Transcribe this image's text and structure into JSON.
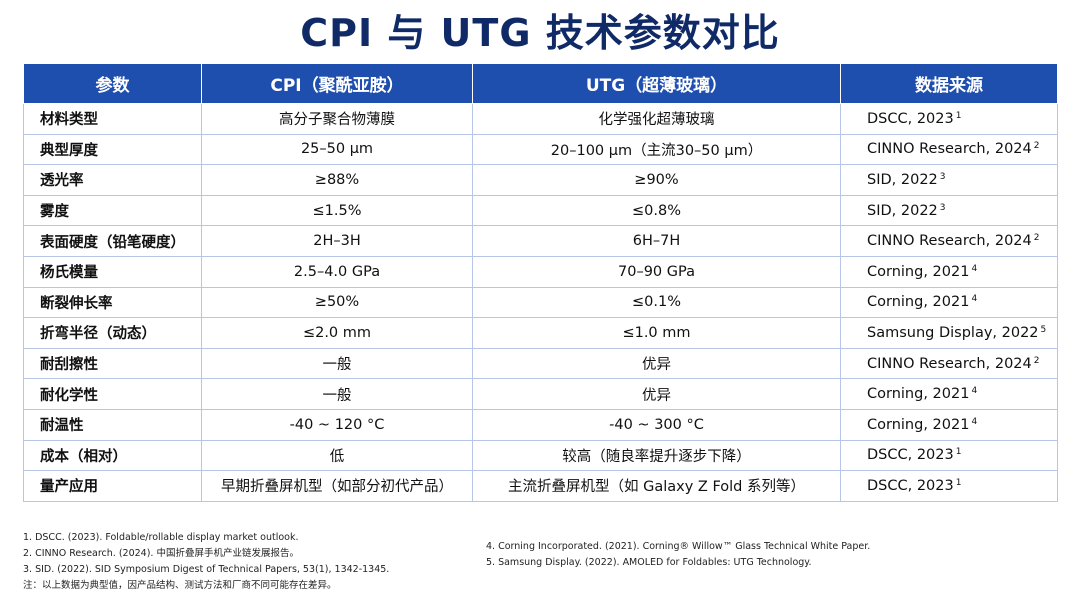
{
  "title": "CPI 与 UTG 技术参数对比",
  "table": {
    "headers": [
      "参数",
      "CPI（聚酰亚胺）",
      "UTG（超薄玻璃）",
      "数据来源"
    ],
    "rows": [
      {
        "param": "材料类型",
        "cpi": "高分子聚合物薄膜",
        "utg": "化学强化超薄玻璃",
        "source": "DSCC, 2023",
        "ref": "1"
      },
      {
        "param": "典型厚度",
        "cpi": "25–50 µm",
        "utg": "20–100 µm（主流30–50 µm）",
        "source": "CINNO Research, 2024",
        "ref": "2"
      },
      {
        "param": "透光率",
        "cpi": "≥88%",
        "utg": "≥90%",
        "source": "SID, 2022",
        "ref": "3"
      },
      {
        "param": "雾度",
        "cpi": "≤1.5%",
        "utg": "≤0.8%",
        "source": "SID, 2022",
        "ref": "3"
      },
      {
        "param": "表面硬度（铅笔硬度）",
        "cpi": "2H–3H",
        "utg": "6H–7H",
        "source": "CINNO Research, 2024",
        "ref": "2"
      },
      {
        "param": "杨氏模量",
        "cpi": "2.5–4.0 GPa",
        "utg": "70–90 GPa",
        "source": "Corning, 2021",
        "ref": "4"
      },
      {
        "param": "断裂伸长率",
        "cpi": "≥50%",
        "utg": "≤0.1%",
        "source": "Corning, 2021",
        "ref": "4"
      },
      {
        "param": "折弯半径（动态）",
        "cpi": "≤2.0 mm",
        "utg": "≤1.0 mm",
        "source": "Samsung Display, 2022",
        "ref": "5"
      },
      {
        "param": "耐刮擦性",
        "cpi": "一般",
        "utg": "优异",
        "source": "CINNO Research, 2024",
        "ref": "2"
      },
      {
        "param": "耐化学性",
        "cpi": "一般",
        "utg": "优异",
        "source": "Corning, 2021",
        "ref": "4"
      },
      {
        "param": "耐温性",
        "cpi": "-40 ~ 120 °C",
        "utg": "-40 ~ 300 °C",
        "source": "Corning, 2021",
        "ref": "4"
      },
      {
        "param": "成本（相对）",
        "cpi": "低",
        "utg": "较高（随良率提升逐步下降）",
        "source": "DSCC, 2023",
        "ref": "1"
      },
      {
        "param": "量产应用",
        "cpi": "早期折叠屏机型（如部分初代产品）",
        "utg": "主流折叠屏机型（如 Galaxy Z Fold 系列等）",
        "source": "DSCC, 2023",
        "ref": "1"
      }
    ]
  },
  "references": {
    "left": [
      "1. DSCC. (2023). Foldable/rollable display market outlook.",
      "2. CINNO Research. (2024). 中国折叠屏手机产业链发展报告。",
      "3. SID. (2022). SID Symposium Digest of Technical Papers, 53(1), 1342-1345.",
      "注：以上数据为典型值，因产品结构、测试方法和厂商不同可能存在差异。"
    ],
    "right": [
      "4.  Corning Incorporated. (2021). Corning® Willow™ Glass Technical White Paper.",
      "5.  Samsung Display. (2022). AMOLED for Foldables: UTG Technology."
    ]
  },
  "colors": {
    "title": "#0f2a66",
    "header_bg": "#1f4fae",
    "header_text": "#ffffff",
    "grid": "#b7c6e4"
  }
}
